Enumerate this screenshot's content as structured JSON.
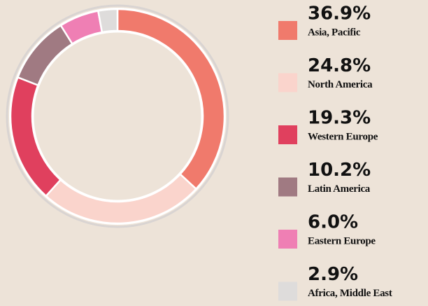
{
  "chart_data": {
    "type": "donut",
    "categories": [
      "Asia, Pacific",
      "North America",
      "Western Europe",
      "Latin America",
      "Eastern Europe",
      "Africa, Middle East"
    ],
    "values": [
      36.9,
      24.8,
      19.3,
      10.2,
      6,
      2.9
    ],
    "value_labels": [
      "36.9%",
      "24.8%",
      "19.3%",
      "10.2%",
      "6.0%",
      "2.9%"
    ],
    "colors": [
      "#f07a6c",
      "#fad4cc",
      "#e0405e",
      "#a07a82",
      "#ef7fb4",
      "#dedcdb"
    ]
  }
}
